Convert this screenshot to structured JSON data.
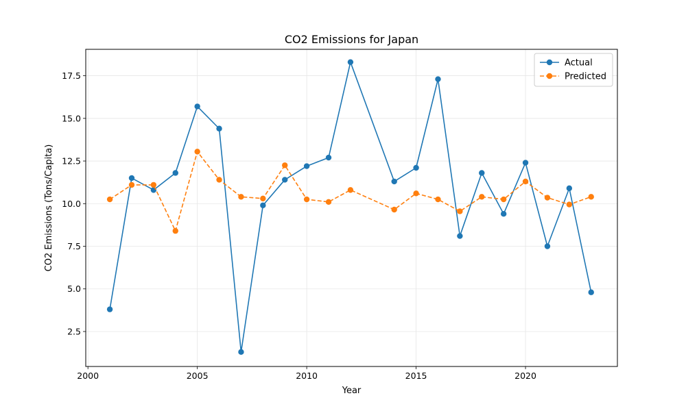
{
  "chart_data": {
    "type": "line",
    "title": "CO2 Emissions for Japan",
    "xlabel": "Year",
    "ylabel": "CO2 Emissions (Tons/Capita)",
    "xlim": [
      1999.9,
      2024.2
    ],
    "ylim": [
      0.45,
      19.05
    ],
    "x_ticks": [
      2000,
      2005,
      2010,
      2015,
      2020
    ],
    "y_ticks": [
      2.5,
      5.0,
      7.5,
      10.0,
      12.5,
      15.0,
      17.5
    ],
    "grid": true,
    "legend_position": "top-right",
    "series": [
      {
        "name": "Actual",
        "color": "#1f77b4",
        "style": "solid",
        "x": [
          2001,
          2002,
          2003,
          2004,
          2005,
          2006,
          2007,
          2008,
          2009,
          2010,
          2011,
          2012,
          2014,
          2015,
          2016,
          2017,
          2018,
          2019,
          2020,
          2021,
          2022,
          2023
        ],
        "values": [
          3.8,
          11.5,
          10.8,
          11.8,
          15.7,
          14.4,
          1.3,
          9.9,
          11.4,
          12.2,
          12.7,
          18.3,
          11.3,
          12.1,
          17.3,
          8.1,
          11.8,
          9.4,
          12.4,
          7.5,
          10.9,
          4.8
        ]
      },
      {
        "name": "Predicted",
        "color": "#ff7f0e",
        "style": "dashed",
        "x": [
          2001,
          2002,
          2003,
          2004,
          2005,
          2006,
          2007,
          2008,
          2009,
          2010,
          2011,
          2012,
          2014,
          2015,
          2016,
          2017,
          2018,
          2019,
          2020,
          2021,
          2022,
          2023
        ],
        "values": [
          10.25,
          11.1,
          11.1,
          8.4,
          13.05,
          11.4,
          10.4,
          10.3,
          12.25,
          10.25,
          10.1,
          10.8,
          9.65,
          10.6,
          10.25,
          9.55,
          10.4,
          10.25,
          11.3,
          10.35,
          9.95,
          10.4
        ]
      }
    ]
  }
}
